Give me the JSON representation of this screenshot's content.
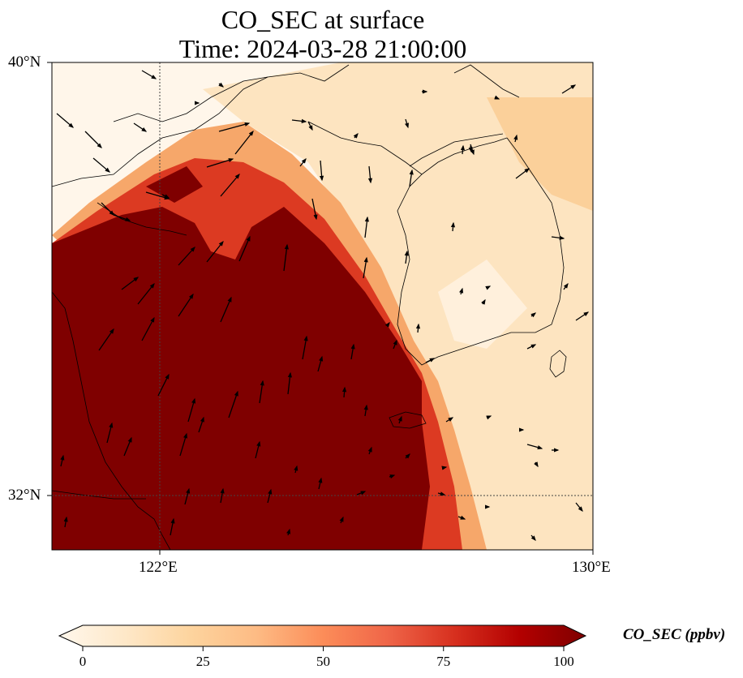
{
  "title": {
    "line1": "CO_SEC at surface",
    "line2": "Time: 2024-03-28 21:00:00"
  },
  "map": {
    "lon_range": [
      120,
      130
    ],
    "lat_range": [
      31,
      40
    ],
    "lat_ticks": [
      {
        "value": 40,
        "label": "40°N"
      },
      {
        "value": 32,
        "label": "32°N"
      }
    ],
    "lon_ticks": [
      {
        "value": 122,
        "label": "122°E"
      },
      {
        "value": 130,
        "label": "130°E"
      }
    ],
    "gridlines": "dotted",
    "field": "CO_SEC concentration, very high (>100 ppbv) over Yellow Sea and eastern China, low over Korea and northern coast",
    "wind_vectors": "black arrows, mostly pointing north-northeast"
  },
  "colorbar": {
    "label": "CO_SEC (ppbv)",
    "ticks": [
      "0",
      "25",
      "50",
      "75",
      "100"
    ],
    "range": [
      0,
      100
    ],
    "colormap": "OrRd",
    "extend": "both",
    "colors": [
      "#fff7ec",
      "#fee8c8",
      "#fdd49e",
      "#fdbb84",
      "#fc8d59",
      "#ef6548",
      "#d7301f",
      "#b30000",
      "#7f0000"
    ]
  }
}
